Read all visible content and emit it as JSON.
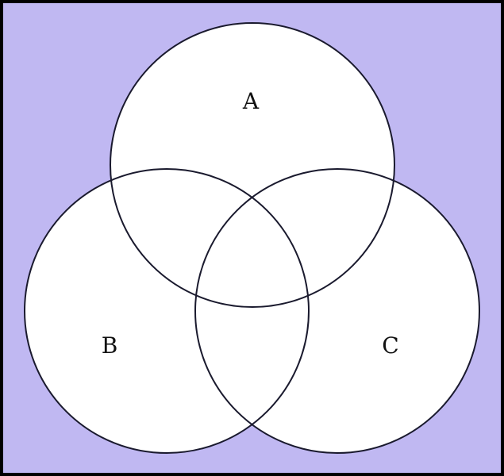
{
  "diagram": {
    "type": "venn",
    "sets": [
      {
        "id": "A",
        "label": "A"
      },
      {
        "id": "B",
        "label": "B"
      },
      {
        "id": "C",
        "label": "C"
      }
    ],
    "colors": {
      "universe_fill": "#c0b8f2",
      "universe_border": "#000000",
      "circle_fill": "#ffffff",
      "circle_stroke": "#1a1a2e"
    }
  }
}
